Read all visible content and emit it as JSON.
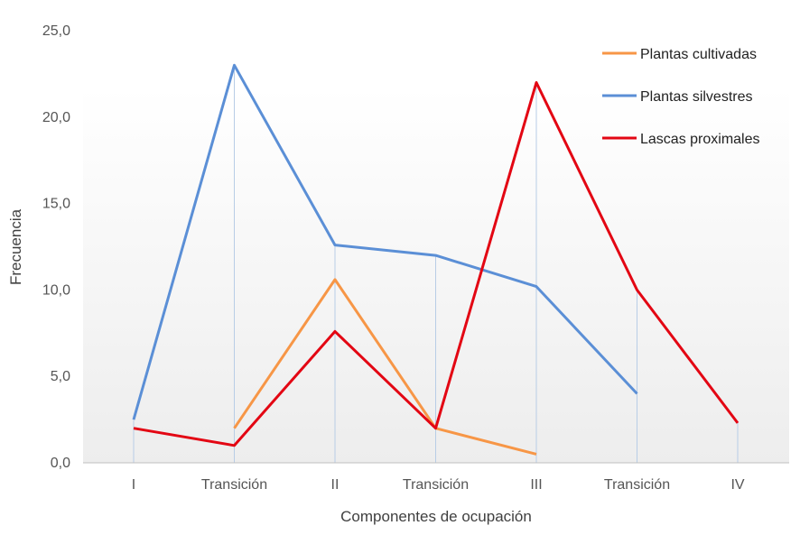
{
  "chart_data": {
    "type": "line",
    "xlabel": "Componentes de ocupación",
    "ylabel": "Frecuencia",
    "categories": [
      "I",
      "Transición",
      "II",
      "Transición",
      "III",
      "Transición",
      "IV"
    ],
    "ylim": [
      0,
      25
    ],
    "yticks": [
      0,
      5,
      10,
      15,
      20,
      25
    ],
    "ytick_labels": [
      "0,0",
      "5,0",
      "10,0",
      "15,0",
      "20,0",
      "25,0"
    ],
    "grid": "vertical drop lines",
    "legend_position": "top-right",
    "series": [
      {
        "name": "Plantas cultivadas",
        "color": "#f79646",
        "values": [
          null,
          2.0,
          10.6,
          2.0,
          0.5,
          null,
          null
        ]
      },
      {
        "name": "Plantas silvestres",
        "color": "#5b8fd6",
        "values": [
          2.5,
          23.0,
          12.6,
          12.0,
          10.2,
          4.0,
          null
        ]
      },
      {
        "name": "Lascas proximales",
        "color": "#e30613",
        "values": [
          2.0,
          1.0,
          7.6,
          2.0,
          22.0,
          10.0,
          2.3
        ]
      }
    ]
  }
}
